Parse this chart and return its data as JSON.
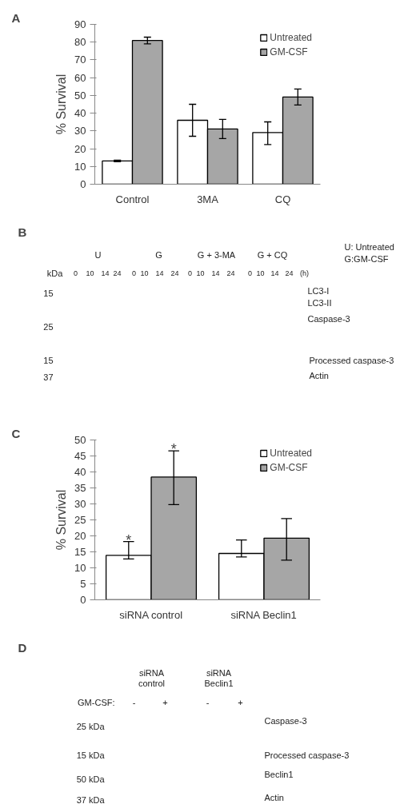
{
  "chart_data": [
    {
      "type": "bar",
      "title": "A",
      "ylabel": "% Survival",
      "categories": [
        "Control",
        "3MA",
        "CQ"
      ],
      "series": [
        {
          "name": "Untreated",
          "color": "#ffffff",
          "values": [
            13.1,
            36,
            29.1
          ],
          "errors": [
            0.4,
            9,
            [
              22.3,
              35.1
            ]
          ]
        },
        {
          "name": "GM-CSF",
          "color": "#a6a6a6",
          "values": [
            80.9,
            31.1,
            49.1
          ],
          "errors": [
            1.9,
            5.4,
            4.5
          ]
        }
      ],
      "ylim": [
        0,
        90
      ],
      "yticks": [
        0,
        10,
        20,
        30,
        40,
        50,
        60,
        70,
        80,
        90
      ],
      "legend": "top right",
      "grid": false
    },
    {
      "type": "other",
      "title": "B",
      "annotations": [
        "U",
        "G",
        "G + 3-MA",
        "G + CQ",
        "U: Untreated",
        "G:GM-CSF",
        "kDa",
        "0",
        "10",
        "14",
        "24",
        "0",
        "10",
        "14",
        "24",
        "0",
        "10",
        "14",
        "24",
        "0",
        "10",
        "14",
        "24",
        "(h)",
        "15",
        "25",
        "15",
        "37",
        "LC3-I",
        "LC3-II",
        "Caspase-3",
        "Processed caspase-3",
        "Actin"
      ]
    },
    {
      "type": "bar",
      "title": "C",
      "ylabel": "% Survival",
      "categories": [
        "siRNA control",
        "siRNA Beclin1"
      ],
      "series": [
        {
          "name": "Untreated",
          "color": "#ffffff",
          "values": [
            13.9,
            14.5
          ],
          "errors": [
            [
              12.8,
              18.2
            ],
            [
              13.4,
              18.7
            ]
          ]
        },
        {
          "name": "GM-CSF",
          "color": "#a6a6a6",
          "values": [
            38.4,
            19.3
          ],
          "errors": [
            [
              29.8,
              46.6
            ],
            [
              12.4,
              25.4
            ]
          ]
        }
      ],
      "ylim": [
        0,
        50
      ],
      "yticks": [
        0,
        5,
        10,
        15,
        20,
        25,
        30,
        35,
        40,
        45,
        50
      ],
      "legend": "top right",
      "grid": false,
      "annotations": [
        "*",
        "*"
      ]
    },
    {
      "type": "other",
      "title": "D",
      "annotations": [
        "siRNA control",
        "siRNA Beclin1",
        "GM-CSF:",
        "-",
        "+",
        "-",
        "+",
        "25 kDa",
        "15 kDa",
        "50 kDa",
        "37 kDa",
        "Caspase-3",
        "Processed caspase-3",
        "Beclin1",
        "Actin"
      ]
    }
  ]
}
